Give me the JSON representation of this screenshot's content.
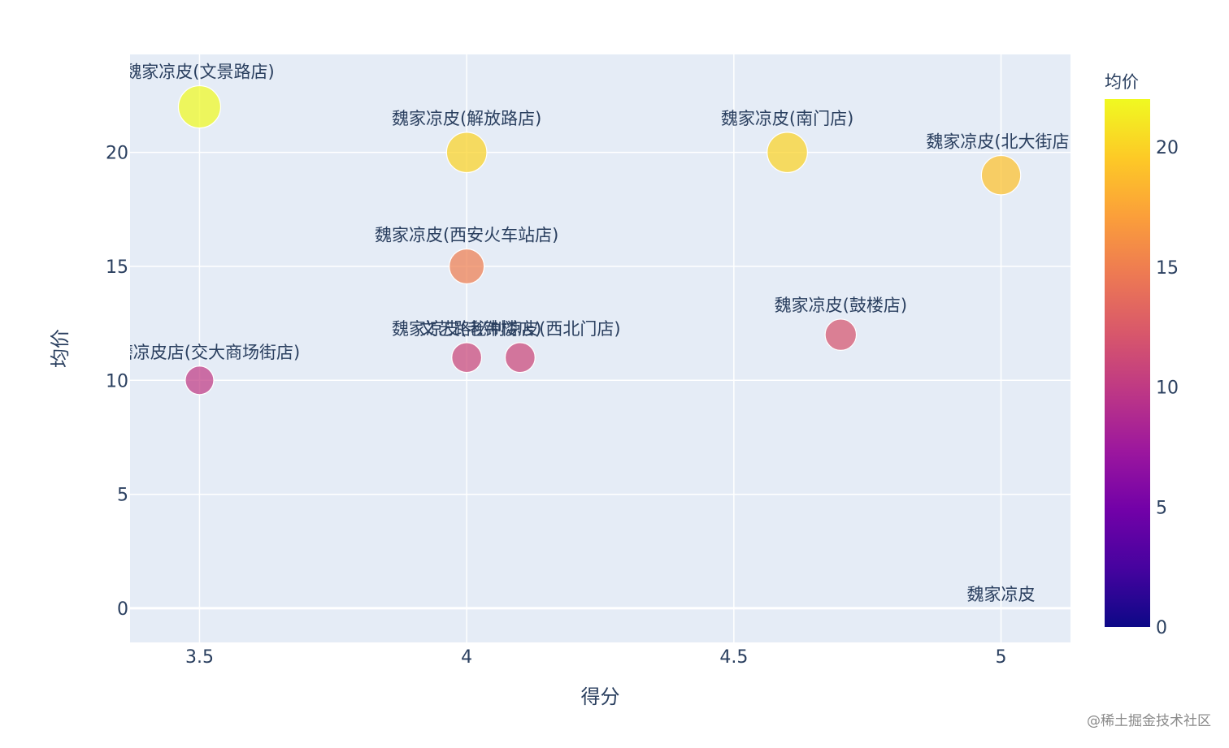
{
  "chart_data": {
    "type": "scatter",
    "xlabel": "得分",
    "ylabel": "均价",
    "xlim": [
      3.37,
      5.13
    ],
    "ylim": [
      -1.5,
      24.3
    ],
    "x_ticks": [
      {
        "value": 3.5,
        "label": "3.5"
      },
      {
        "value": 4,
        "label": "4"
      },
      {
        "value": 4.5,
        "label": "4.5"
      },
      {
        "value": 5,
        "label": "5"
      }
    ],
    "y_ticks": [
      {
        "value": 0,
        "label": "0"
      },
      {
        "value": 5,
        "label": "5"
      },
      {
        "value": 10,
        "label": "10"
      },
      {
        "value": 15,
        "label": "15"
      },
      {
        "value": 20,
        "label": "20"
      }
    ],
    "grid": true,
    "size_encoding": "均价",
    "color_encoding": "均价",
    "points": [
      {
        "name": "魏家凉皮(文景路店)",
        "x": 3.5,
        "y": 22
      },
      {
        "name": "魏家凉皮(解放路店)",
        "x": 4.0,
        "y": 20
      },
      {
        "name": "魏家凉皮(南门店)",
        "x": 4.6,
        "y": 20
      },
      {
        "name": "魏家凉皮(北大街店)",
        "x": 5.0,
        "y": 19
      },
      {
        "name": "魏家凉皮(西安火车站店)",
        "x": 4.0,
        "y": 15
      },
      {
        "name": "魏家凉皮(鼓楼店)",
        "x": 4.7,
        "y": 12
      },
      {
        "name": "魏家凉皮(老钟楼店)",
        "x": 4.0,
        "y": 11
      },
      {
        "name": "文艺路秘制凉皮(西北门店)",
        "x": 4.1,
        "y": 11
      },
      {
        "name": "水磨凉皮店(交大商场街店)",
        "x": 3.5,
        "y": 10
      },
      {
        "name": "魏家凉皮",
        "x": 5.0,
        "y": 0
      }
    ],
    "colorbar": {
      "title": "均价",
      "range": [
        0,
        22
      ],
      "ticks": [
        {
          "value": 0,
          "label": "0"
        },
        {
          "value": 5,
          "label": "5"
        },
        {
          "value": 10,
          "label": "10"
        },
        {
          "value": 15,
          "label": "15"
        },
        {
          "value": 20,
          "label": "20"
        }
      ],
      "colorscale": [
        "#0d0887",
        "#46039f",
        "#7201a8",
        "#9c179e",
        "#bd3786",
        "#d8576b",
        "#ed7953",
        "#fb9f3a",
        "#fdca26",
        "#f0f921"
      ]
    },
    "colors": {
      "plot_background": "#e5ecf6",
      "grid": "#ffffff",
      "text": "#2a3f5f"
    }
  },
  "watermark": "@稀土掘金技术社区"
}
